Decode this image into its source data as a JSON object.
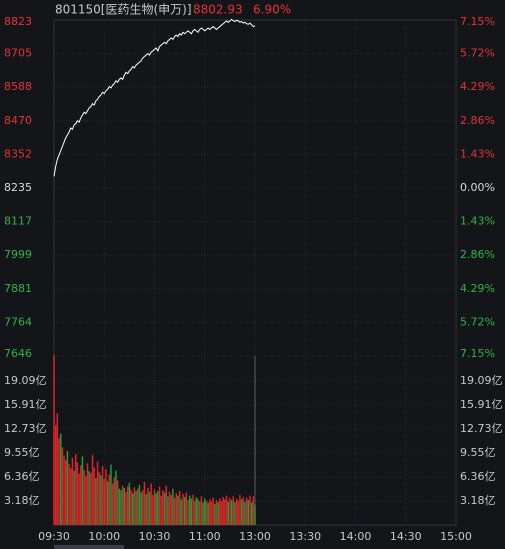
{
  "header": {
    "code": "801150[医药生物(申万)]",
    "price": 8802.93,
    "change": "6.90%"
  },
  "chart_data": [
    {
      "type": "line",
      "base": 8235,
      "xlim": [
        0,
        240
      ],
      "ylim": [
        7646,
        8823
      ],
      "yticks": [
        7646,
        7764,
        7881,
        7999,
        8117,
        8235,
        8352,
        8470,
        8588,
        8705,
        8823
      ],
      "y2lim": [
        -7.15,
        7.15
      ],
      "y2ticks": [
        {
          "value": -7.15,
          "label": "7.15%"
        },
        {
          "value": -5.72,
          "label": "5.72%"
        },
        {
          "value": -4.29,
          "label": "4.29%"
        },
        {
          "value": -2.86,
          "label": "2.86%"
        },
        {
          "value": -1.43,
          "label": "1.43%"
        },
        {
          "value": 0,
          "label": "0.00%"
        },
        {
          "value": 1.43,
          "label": "1.43%"
        },
        {
          "value": 2.86,
          "label": "2.86%"
        },
        {
          "value": 4.29,
          "label": "4.29%"
        },
        {
          "value": 5.72,
          "label": "5.72%"
        },
        {
          "value": 7.15,
          "label": "7.15%"
        }
      ],
      "up_color": "#e0353a",
      "down_color": "#2db34a",
      "flat_color": "#d8d8d8",
      "series": [
        {
          "color": "#ffffff",
          "x": [
            0,
            1,
            2,
            3,
            4,
            5,
            6,
            7,
            8,
            9,
            10,
            11,
            12,
            13,
            14,
            15,
            16,
            17,
            18,
            19,
            20,
            21,
            22,
            23,
            24,
            25,
            26,
            27,
            28,
            29,
            30,
            31,
            32,
            33,
            34,
            35,
            36,
            37,
            38,
            39,
            40,
            41,
            42,
            43,
            44,
            45,
            46,
            47,
            48,
            49,
            50,
            51,
            52,
            53,
            54,
            55,
            56,
            57,
            58,
            59,
            60,
            61,
            62,
            63,
            64,
            65,
            66,
            67,
            68,
            69,
            70,
            71,
            72,
            73,
            74,
            75,
            76,
            77,
            78,
            79,
            80,
            81,
            82,
            83,
            84,
            85,
            86,
            87,
            88,
            89,
            90,
            91,
            92,
            93,
            94,
            95,
            96,
            97,
            98,
            99,
            100,
            101,
            102,
            103,
            104,
            105,
            106,
            107,
            108,
            109,
            110,
            111,
            112,
            113,
            114,
            115,
            116,
            117,
            118,
            119,
            120
          ],
          "values": [
            8275,
            8310,
            8335,
            8350,
            8365,
            8380,
            8395,
            8410,
            8420,
            8430,
            8445,
            8440,
            8455,
            8460,
            8470,
            8465,
            8480,
            8490,
            8500,
            8495,
            8505,
            8515,
            8520,
            8530,
            8525,
            8540,
            8545,
            8555,
            8560,
            8570,
            8565,
            8575,
            8580,
            8590,
            8585,
            8595,
            8600,
            8610,
            8605,
            8615,
            8620,
            8615,
            8630,
            8640,
            8635,
            8645,
            8650,
            8660,
            8655,
            8665,
            8670,
            8675,
            8680,
            8690,
            8695,
            8700,
            8705,
            8700,
            8710,
            8715,
            8720,
            8725,
            8715,
            8730,
            8735,
            8740,
            8745,
            8740,
            8750,
            8755,
            8760,
            8755,
            8765,
            8770,
            8765,
            8775,
            8770,
            8780,
            8775,
            8780,
            8785,
            8780,
            8775,
            8785,
            8790,
            8785,
            8780,
            8790,
            8795,
            8790,
            8785,
            8790,
            8795,
            8790,
            8795,
            8800,
            8795,
            8790,
            8795,
            8800,
            8805,
            8810,
            8815,
            8820,
            8815,
            8820,
            8825,
            8820,
            8818,
            8822,
            8820,
            8815,
            8818,
            8812,
            8815,
            8810,
            8808,
            8812,
            8806,
            8800,
            8802.93
          ]
        }
      ]
    },
    {
      "type": "bar",
      "xlim": [
        0,
        240
      ],
      "xticks": [
        {
          "value": 0,
          "label": "09:30"
        },
        {
          "value": 30,
          "label": "10:00"
        },
        {
          "value": 60,
          "label": "10:30"
        },
        {
          "value": 90,
          "label": "11:00"
        },
        {
          "value": 120,
          "label": "13:00"
        },
        {
          "value": 150,
          "label": "13:30"
        },
        {
          "value": 180,
          "label": "14:00"
        },
        {
          "value": 210,
          "label": "14:30"
        },
        {
          "value": 240,
          "label": "15:00"
        }
      ],
      "ylim": [
        0,
        22.39
      ],
      "yticks": [
        {
          "value": 3.18,
          "label": "3.18亿"
        },
        {
          "value": 6.36,
          "label": "6.36亿"
        },
        {
          "value": 9.55,
          "label": "9.55亿"
        },
        {
          "value": 12.73,
          "label": "12.73亿"
        },
        {
          "value": 15.91,
          "label": "15.91亿"
        },
        {
          "value": 19.09,
          "label": "19.09亿"
        }
      ],
      "values": [
        22.5,
        13.2,
        14.8,
        11.5,
        12.1,
        10.3,
        9.2,
        8.6,
        9.8,
        8.1,
        7.5,
        8.9,
        7.2,
        9.4,
        8.3,
        6.8,
        7.9,
        9.1,
        7.3,
        6.5,
        8.2,
        7.1,
        6.9,
        9.3,
        7.6,
        6.2,
        8.4,
        7.0,
        6.6,
        7.8,
        6.1,
        7.4,
        5.8,
        6.7,
        8.0,
        5.5,
        6.3,
        7.2,
        5.9,
        4.8,
        4.6,
        5.2,
        4.9,
        4.4,
        5.1,
        5.6,
        4.7,
        4.2,
        5.0,
        4.5,
        4.8,
        5.3,
        4.3,
        4.6,
        5.7,
        4.1,
        4.9,
        4.4,
        5.5,
        4.0,
        4.7,
        4.2,
        4.5,
        5.1,
        3.9,
        4.6,
        4.3,
        5.2,
        3.8,
        4.4,
        4.0,
        4.8,
        3.6,
        4.2,
        3.9,
        4.5,
        3.4,
        4.1,
        3.7,
        4.3,
        3.3,
        3.9,
        3.5,
        4.0,
        3.2,
        3.7,
        3.4,
        3.1,
        3.8,
        3.0,
        3.5,
        3.2,
        2.9,
        3.4,
        3.1,
        3.6,
        2.8,
        3.3,
        3.0,
        3.5,
        3.2,
        3.7,
        3.4,
        3.9,
        3.1,
        3.6,
        3.3,
        3.8,
        3.0,
        3.5,
        3.2,
        4.0,
        3.4,
        3.7,
        3.1,
        3.6,
        3.3,
        3.9,
        3.0,
        3.8,
        2.7
      ],
      "colors": [
        "#d9262b",
        "#d9262b",
        "#d9262b",
        "#d9262b",
        "#1f9e3a",
        "#d9262b",
        "#d9262b",
        "#d9262b",
        "#1f9e3a",
        "#d9262b",
        "#d9262b",
        "#d9262b",
        "#1f9e3a",
        "#d9262b",
        "#d9262b",
        "#d9262b",
        "#d9262b",
        "#1f9e3a",
        "#d9262b",
        "#d9262b",
        "#d9262b",
        "#1f9e3a",
        "#d9262b",
        "#d9262b",
        "#d9262b",
        "#1f9e3a",
        "#d9262b",
        "#d9262b",
        "#1f9e3a",
        "#d9262b",
        "#d9262b",
        "#d9262b",
        "#1f9e3a",
        "#d9262b",
        "#1f9e3a",
        "#d9262b",
        "#d9262b",
        "#1f9e3a",
        "#d9262b",
        "#1f9e3a",
        "#1f9e3a",
        "#d9262b",
        "#1f9e3a",
        "#d9262b",
        "#d9262b",
        "#1f9e3a",
        "#d9262b",
        "#1f9e3a",
        "#d9262b",
        "#1f9e3a",
        "#d9262b",
        "#1f9e3a",
        "#1f9e3a",
        "#d9262b",
        "#d9262b",
        "#1f9e3a",
        "#d9262b",
        "#1f9e3a",
        "#d9262b",
        "#d9262b",
        "#d9262b",
        "#1f9e3a",
        "#1f9e3a",
        "#d9262b",
        "#d9262b",
        "#d9262b",
        "#1f9e3a",
        "#d9262b",
        "#1f9e3a",
        "#d9262b",
        "#d9262b",
        "#1f9e3a",
        "#d9262b",
        "#d9262b",
        "#1f9e3a",
        "#d9262b",
        "#1f9e3a",
        "#d9262b",
        "#1f9e3a",
        "#d9262b",
        "#d9262b",
        "#1f9e3a",
        "#1f9e3a",
        "#d9262b",
        "#d9262b",
        "#1f9e3a",
        "#1f9e3a",
        "#d9262b",
        "#d9262b",
        "#1f9e3a",
        "#1f9e3a",
        "#d9262b",
        "#1f9e3a",
        "#d9262b",
        "#d9262b",
        "#d9262b",
        "#1f9e3a",
        "#d9262b",
        "#1f9e3a",
        "#d9262b",
        "#d9262b",
        "#d9262b",
        "#d9262b",
        "#d9262b",
        "#1f9e3a",
        "#d9262b",
        "#1f9e3a",
        "#d9262b",
        "#1f9e3a",
        "#d9262b",
        "#d9262b",
        "#d9262b",
        "#1f9e3a",
        "#d9262b",
        "#1f9e3a",
        "#d9262b",
        "#1f9e3a",
        "#d9262b",
        "#1f9e3a",
        "#d9262b",
        "#1f9e3a"
      ]
    }
  ]
}
